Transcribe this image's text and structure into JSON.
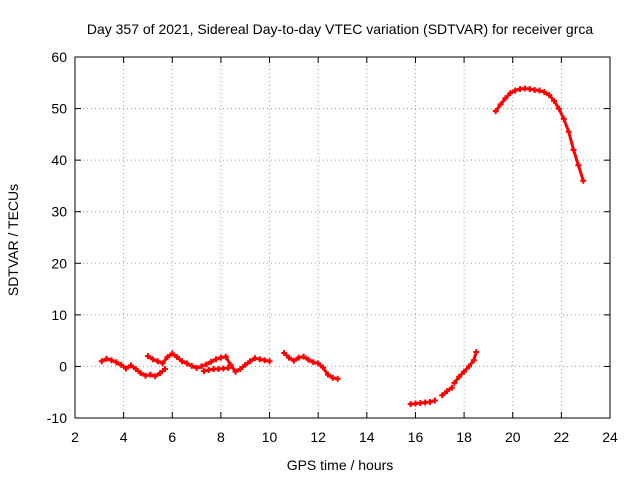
{
  "chart_data": {
    "type": "line",
    "title": "Day 357 of 2021, Sidereal Day-to-day VTEC variation (SDTVAR) for receiver grca",
    "xlabel": "GPS time / hours",
    "ylabel": "SDTVAR / TECUs",
    "xlim": [
      2,
      24
    ],
    "ylim": [
      -10,
      60
    ],
    "xticks": [
      2,
      4,
      6,
      8,
      10,
      12,
      14,
      16,
      18,
      20,
      22,
      24
    ],
    "yticks": [
      -10,
      0,
      10,
      20,
      30,
      40,
      50,
      60
    ],
    "grid": true,
    "series_color": "#ff0000",
    "series": [
      {
        "name": "segment-1",
        "points": [
          [
            3.1,
            1.0
          ],
          [
            3.3,
            1.5
          ],
          [
            3.5,
            1.2
          ],
          [
            3.7,
            0.8
          ],
          [
            3.9,
            0.3
          ],
          [
            4.1,
            -0.4
          ],
          [
            4.3,
            0.2
          ],
          [
            4.5,
            -0.5
          ],
          [
            4.7,
            -1.3
          ],
          [
            4.9,
            -1.8
          ],
          [
            5.1,
            -1.6
          ],
          [
            5.3,
            -1.9
          ],
          [
            5.5,
            -1.3
          ],
          [
            5.7,
            -0.5
          ]
        ]
      },
      {
        "name": "segment-2",
        "points": [
          [
            5.0,
            2.0
          ],
          [
            5.2,
            1.4
          ],
          [
            5.4,
            1.0
          ],
          [
            5.6,
            0.6
          ],
          [
            5.8,
            1.8
          ],
          [
            6.0,
            2.5
          ],
          [
            6.2,
            1.8
          ],
          [
            6.4,
            1.0
          ],
          [
            6.6,
            0.6
          ],
          [
            6.8,
            0.1
          ],
          [
            7.0,
            -0.3
          ],
          [
            7.2,
            0.0
          ],
          [
            7.4,
            0.4
          ],
          [
            7.6,
            0.9
          ],
          [
            7.8,
            1.4
          ],
          [
            8.0,
            1.7
          ],
          [
            8.2,
            1.9
          ],
          [
            8.4,
            0.3
          ],
          [
            8.6,
            -1.0
          ],
          [
            8.8,
            -0.5
          ],
          [
            9.0,
            0.3
          ],
          [
            9.2,
            1.0
          ],
          [
            9.4,
            1.6
          ],
          [
            9.6,
            1.4
          ],
          [
            9.8,
            1.2
          ],
          [
            10.0,
            1.0
          ]
        ]
      },
      {
        "name": "segment-3",
        "points": [
          [
            7.3,
            -0.9
          ],
          [
            7.5,
            -0.7
          ],
          [
            7.7,
            -0.5
          ],
          [
            7.9,
            -0.5
          ],
          [
            8.1,
            -0.4
          ],
          [
            8.3,
            -0.3
          ]
        ]
      },
      {
        "name": "segment-4",
        "points": [
          [
            10.6,
            2.6
          ],
          [
            10.8,
            1.7
          ],
          [
            11.0,
            1.1
          ],
          [
            11.2,
            1.7
          ],
          [
            11.4,
            1.9
          ],
          [
            11.6,
            1.3
          ],
          [
            11.8,
            0.8
          ],
          [
            12.0,
            0.6
          ],
          [
            12.2,
            -0.2
          ],
          [
            12.4,
            -1.6
          ],
          [
            12.6,
            -2.2
          ],
          [
            12.8,
            -2.4
          ]
        ]
      },
      {
        "name": "segment-5",
        "points": [
          [
            15.8,
            -7.3
          ],
          [
            16.0,
            -7.2
          ],
          [
            16.2,
            -7.1
          ],
          [
            16.4,
            -7.0
          ],
          [
            16.6,
            -6.9
          ],
          [
            16.8,
            -6.6
          ]
        ]
      },
      {
        "name": "segment-6",
        "points": [
          [
            17.1,
            -5.6
          ],
          [
            17.3,
            -4.8
          ],
          [
            17.5,
            -4.1
          ]
        ]
      },
      {
        "name": "segment-7",
        "points": [
          [
            17.6,
            -3.2
          ],
          [
            17.8,
            -2.0
          ],
          [
            18.0,
            -1.0
          ],
          [
            18.2,
            0.0
          ],
          [
            18.4,
            1.2
          ],
          [
            18.5,
            2.8
          ]
        ]
      },
      {
        "name": "segment-8",
        "points": [
          [
            19.3,
            49.5
          ],
          [
            19.5,
            50.8
          ],
          [
            19.7,
            52.0
          ],
          [
            19.9,
            53.0
          ],
          [
            20.1,
            53.5
          ],
          [
            20.3,
            53.8
          ],
          [
            20.5,
            53.9
          ],
          [
            20.7,
            53.8
          ],
          [
            20.9,
            53.6
          ],
          [
            21.1,
            53.5
          ],
          [
            21.3,
            53.2
          ],
          [
            21.5,
            52.6
          ],
          [
            21.7,
            51.5
          ],
          [
            21.9,
            50.0
          ],
          [
            22.1,
            48.0
          ],
          [
            22.3,
            45.5
          ],
          [
            22.5,
            42.0
          ],
          [
            22.7,
            39.0
          ],
          [
            22.9,
            36.0
          ]
        ]
      }
    ]
  }
}
